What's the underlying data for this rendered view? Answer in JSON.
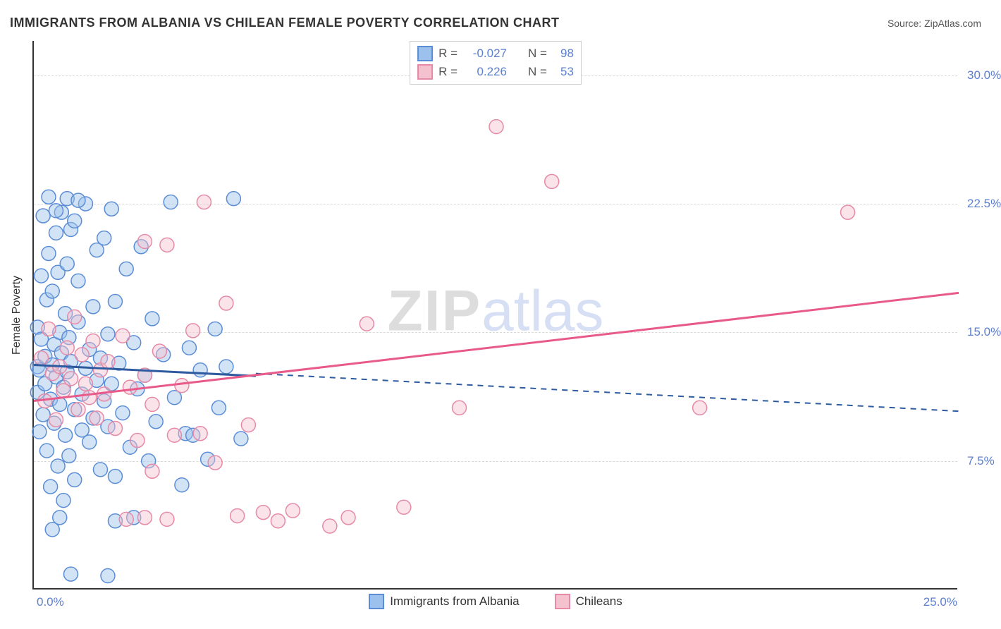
{
  "title": "IMMIGRANTS FROM ALBANIA VS CHILEAN FEMALE POVERTY CORRELATION CHART",
  "source_label": "Source: ZipAtlas.com",
  "ylabel": "Female Poverty",
  "watermark": {
    "part1": "ZIP",
    "part2": "atlas"
  },
  "chart": {
    "type": "scatter",
    "xlim": [
      0,
      25
    ],
    "ylim": [
      0,
      32
    ],
    "ytick_values": [
      7.5,
      15.0,
      22.5,
      30.0
    ],
    "ytick_labels": [
      "7.5%",
      "15.0%",
      "22.5%",
      "30.0%"
    ],
    "xtick_left": "0.0%",
    "xtick_right": "25.0%",
    "grid_color": "#dadada",
    "background_color": "#ffffff",
    "point_radius": 10,
    "series": [
      {
        "name": "Immigrants from Albania",
        "fill": "#9cc1ec",
        "stroke": "#5b8dd6",
        "R": "-0.027",
        "N": "98",
        "trend": {
          "x1": 0,
          "y1": 13.1,
          "x2": 6.0,
          "y2": 12.6,
          "solid_to_x": 6.0,
          "dash_x1": 6.0,
          "dash_y1": 12.6,
          "dash_x2": 25,
          "dash_y2": 10.4,
          "color": "#2e5aa0",
          "width": 3
        },
        "points": [
          [
            0.1,
            15.3
          ],
          [
            0.1,
            13.0
          ],
          [
            0.1,
            11.5
          ],
          [
            0.15,
            12.8
          ],
          [
            0.15,
            9.2
          ],
          [
            0.2,
            14.6
          ],
          [
            0.2,
            18.3
          ],
          [
            0.25,
            21.8
          ],
          [
            0.25,
            10.2
          ],
          [
            0.3,
            12.0
          ],
          [
            0.3,
            13.6
          ],
          [
            0.35,
            16.9
          ],
          [
            0.35,
            8.1
          ],
          [
            0.4,
            19.6
          ],
          [
            0.4,
            22.9
          ],
          [
            0.45,
            11.1
          ],
          [
            0.45,
            6.0
          ],
          [
            0.5,
            13.1
          ],
          [
            0.5,
            17.4
          ],
          [
            0.55,
            9.7
          ],
          [
            0.55,
            14.3
          ],
          [
            0.6,
            20.8
          ],
          [
            0.6,
            12.4
          ],
          [
            0.65,
            7.2
          ],
          [
            0.65,
            18.5
          ],
          [
            0.7,
            15.0
          ],
          [
            0.7,
            10.8
          ],
          [
            0.75,
            13.8
          ],
          [
            0.75,
            22.0
          ],
          [
            0.8,
            11.8
          ],
          [
            0.8,
            5.2
          ],
          [
            0.85,
            16.1
          ],
          [
            0.85,
            9.0
          ],
          [
            0.9,
            19.0
          ],
          [
            0.9,
            12.7
          ],
          [
            0.95,
            14.7
          ],
          [
            0.95,
            7.8
          ],
          [
            1.0,
            13.3
          ],
          [
            1.0,
            21.0
          ],
          [
            1.1,
            10.5
          ],
          [
            1.1,
            6.4
          ],
          [
            1.2,
            15.6
          ],
          [
            1.2,
            18.0
          ],
          [
            1.3,
            11.4
          ],
          [
            1.3,
            9.3
          ],
          [
            1.4,
            22.5
          ],
          [
            1.4,
            12.9
          ],
          [
            1.5,
            14.0
          ],
          [
            1.5,
            8.6
          ],
          [
            1.6,
            16.5
          ],
          [
            1.6,
            10.0
          ],
          [
            1.7,
            12.2
          ],
          [
            1.7,
            19.8
          ],
          [
            1.8,
            13.5
          ],
          [
            1.8,
            7.0
          ],
          [
            1.9,
            20.5
          ],
          [
            1.9,
            11.0
          ],
          [
            2.0,
            9.5
          ],
          [
            2.0,
            14.9
          ],
          [
            2.1,
            22.2
          ],
          [
            2.1,
            12.0
          ],
          [
            2.2,
            6.6
          ],
          [
            2.2,
            16.8
          ],
          [
            2.3,
            13.2
          ],
          [
            2.4,
            10.3
          ],
          [
            2.5,
            18.7
          ],
          [
            2.6,
            8.3
          ],
          [
            2.7,
            14.4
          ],
          [
            2.8,
            11.7
          ],
          [
            2.9,
            20.0
          ],
          [
            3.0,
            12.5
          ],
          [
            3.1,
            7.5
          ],
          [
            3.2,
            15.8
          ],
          [
            3.3,
            9.8
          ],
          [
            3.5,
            13.7
          ],
          [
            3.7,
            22.6
          ],
          [
            3.8,
            11.2
          ],
          [
            4.0,
            6.1
          ],
          [
            4.1,
            9.1
          ],
          [
            4.2,
            14.1
          ],
          [
            4.3,
            9.0
          ],
          [
            4.5,
            12.8
          ],
          [
            4.7,
            7.6
          ],
          [
            4.9,
            15.2
          ],
          [
            5.0,
            10.6
          ],
          [
            5.2,
            13.0
          ],
          [
            5.4,
            22.8
          ],
          [
            5.6,
            8.8
          ],
          [
            1.0,
            0.9
          ],
          [
            2.0,
            0.8
          ],
          [
            2.2,
            4.0
          ],
          [
            2.7,
            4.2
          ],
          [
            0.9,
            22.8
          ],
          [
            1.2,
            22.7
          ],
          [
            1.1,
            21.5
          ],
          [
            0.6,
            22.1
          ],
          [
            0.5,
            3.5
          ],
          [
            0.7,
            4.2
          ]
        ]
      },
      {
        "name": "Chileans",
        "fill": "#f4c1cf",
        "stroke": "#e68aa7",
        "R": "0.226",
        "N": "53",
        "trend": {
          "x1": 0,
          "y1": 11.0,
          "x2": 25,
          "y2": 17.3,
          "solid_to_x": 25,
          "color": "#e85a8a",
          "width": 3
        },
        "points": [
          [
            0.2,
            13.5
          ],
          [
            0.3,
            11.0
          ],
          [
            0.4,
            15.2
          ],
          [
            0.5,
            12.6
          ],
          [
            0.6,
            9.9
          ],
          [
            0.7,
            13.0
          ],
          [
            0.8,
            11.6
          ],
          [
            0.9,
            14.1
          ],
          [
            1.0,
            12.3
          ],
          [
            1.1,
            15.9
          ],
          [
            1.2,
            10.5
          ],
          [
            1.3,
            13.7
          ],
          [
            1.4,
            12.0
          ],
          [
            1.5,
            11.2
          ],
          [
            1.6,
            14.5
          ],
          [
            1.7,
            10.0
          ],
          [
            1.8,
            12.8
          ],
          [
            1.9,
            11.4
          ],
          [
            2.0,
            13.3
          ],
          [
            2.2,
            9.4
          ],
          [
            2.4,
            14.8
          ],
          [
            2.6,
            11.8
          ],
          [
            2.8,
            8.7
          ],
          [
            3.0,
            12.5
          ],
          [
            3.2,
            10.8
          ],
          [
            3.4,
            13.9
          ],
          [
            3.6,
            20.1
          ],
          [
            3.8,
            9.0
          ],
          [
            4.0,
            11.9
          ],
          [
            4.3,
            15.1
          ],
          [
            4.6,
            22.6
          ],
          [
            4.9,
            7.4
          ],
          [
            5.2,
            16.7
          ],
          [
            5.5,
            4.3
          ],
          [
            5.8,
            9.6
          ],
          [
            6.2,
            4.5
          ],
          [
            6.6,
            4.0
          ],
          [
            7.0,
            4.6
          ],
          [
            8.0,
            3.7
          ],
          [
            8.5,
            4.2
          ],
          [
            9.0,
            15.5
          ],
          [
            10.0,
            4.8
          ],
          [
            11.5,
            10.6
          ],
          [
            12.5,
            27.0
          ],
          [
            14.0,
            23.8
          ],
          [
            18.0,
            10.6
          ],
          [
            22.0,
            22.0
          ],
          [
            2.5,
            4.1
          ],
          [
            3.2,
            6.9
          ],
          [
            3.0,
            20.3
          ],
          [
            3.6,
            4.1
          ],
          [
            4.5,
            9.1
          ],
          [
            3.0,
            4.2
          ]
        ]
      }
    ]
  },
  "legend_top_header": {
    "r_label": "R =",
    "n_label": "N ="
  },
  "legend_bottom": [
    {
      "label": "Immigrants from Albania",
      "fill": "#9cc1ec",
      "stroke": "#5b8dd6"
    },
    {
      "label": "Chileans",
      "fill": "#f4c1cf",
      "stroke": "#e68aa7"
    }
  ]
}
